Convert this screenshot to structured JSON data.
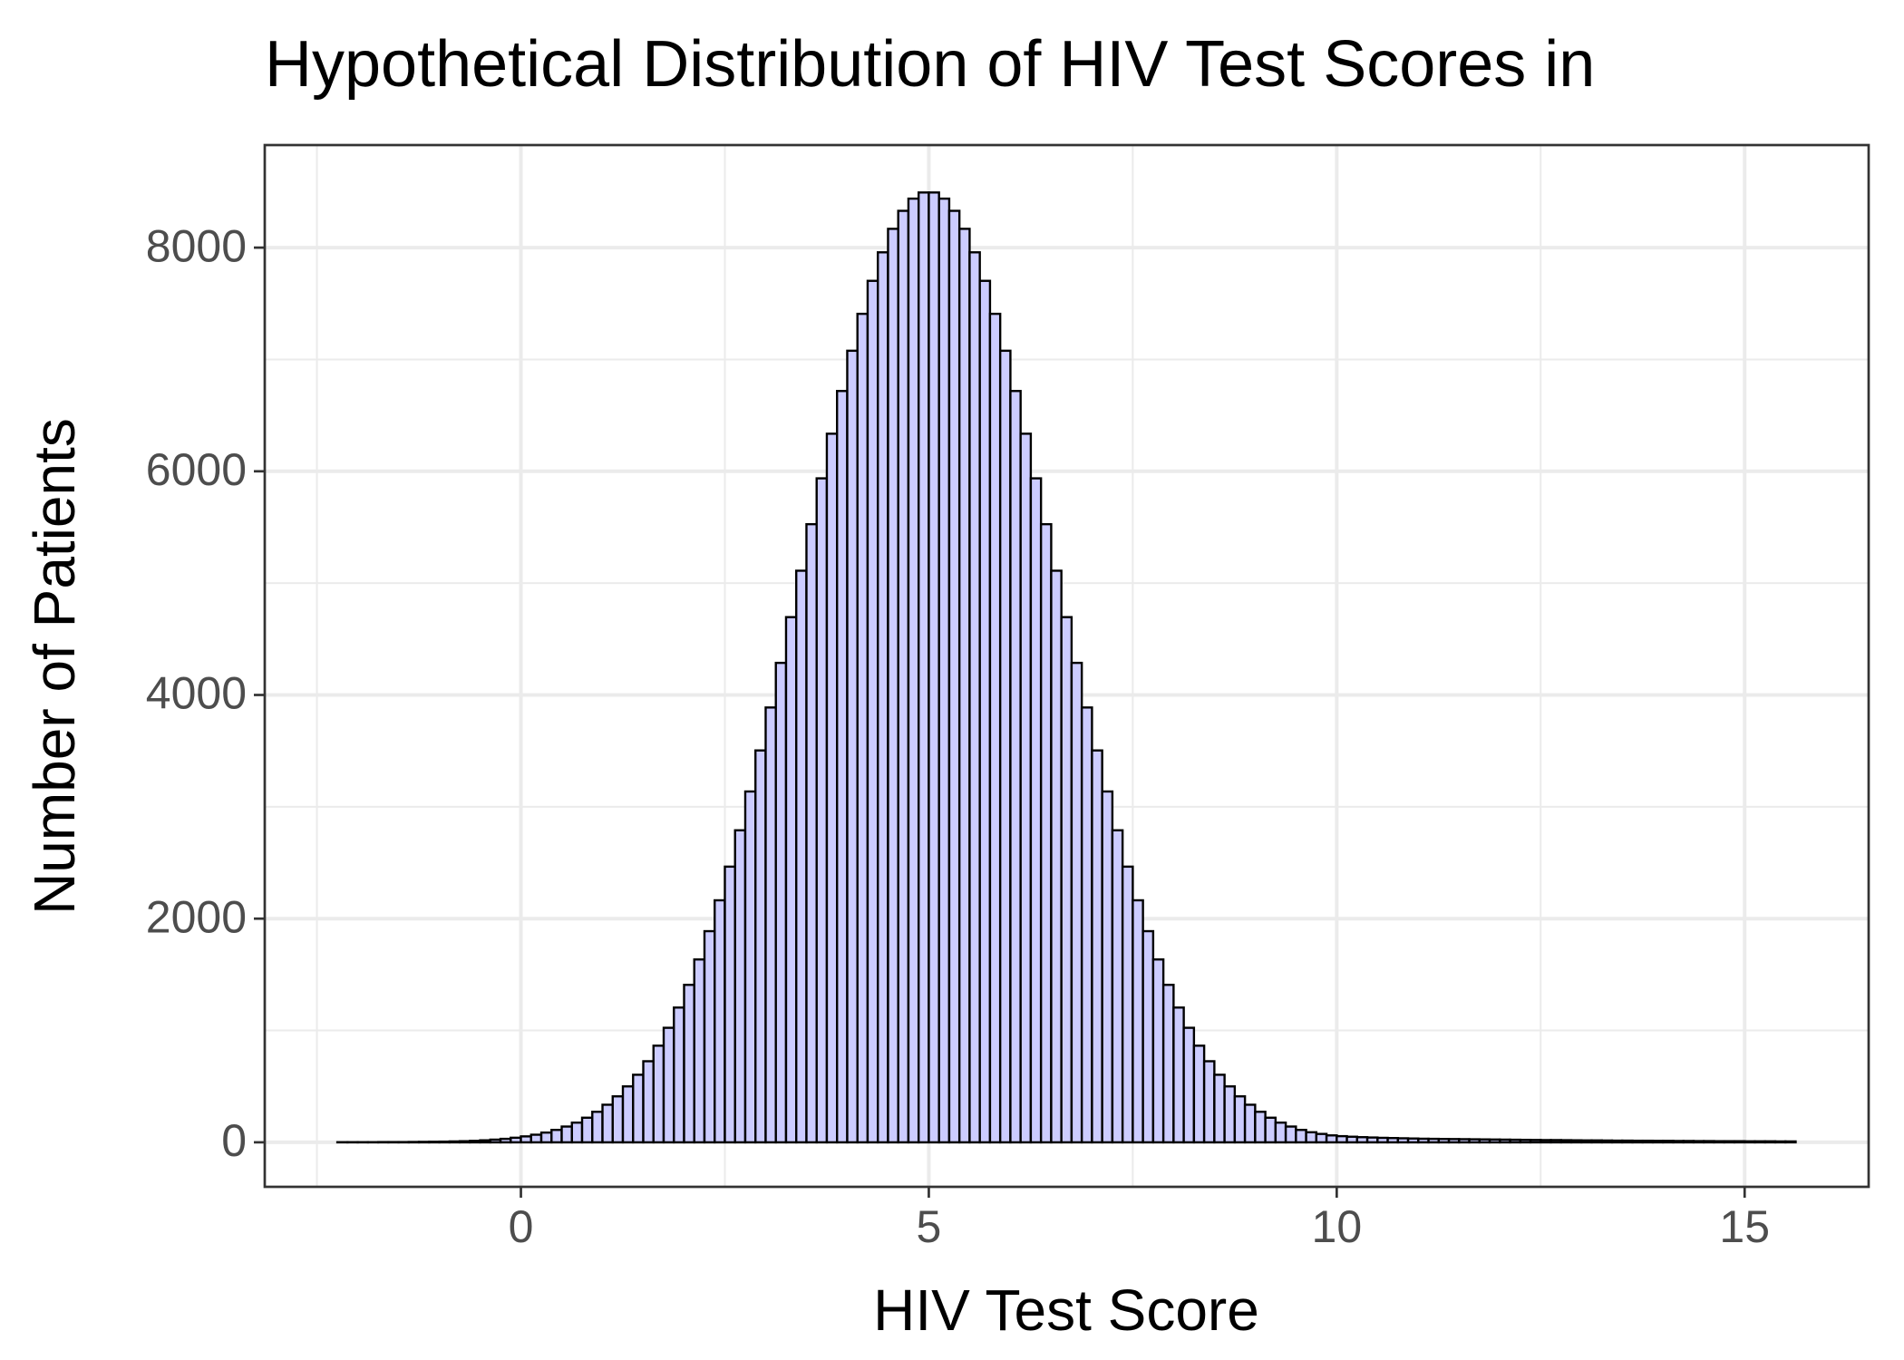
{
  "chart_data": {
    "type": "histogram",
    "title": "Hypothetical Distribution of HIV Test Scores in",
    "x_label": "HIV Test Score",
    "y_label": "Number of Patients",
    "fill": "#ccccff",
    "edgecolor": "#000000",
    "grid": true,
    "xlim": [
      -3.14,
      16.52
    ],
    "ylim": [
      -398,
      8917
    ],
    "xticks": [
      0,
      5,
      10,
      15
    ],
    "yticks": [
      0,
      2000,
      4000,
      6000,
      8000
    ],
    "bins": [
      -2.25,
      -2.125,
      -2,
      -1.875,
      -1.75,
      -1.625,
      -1.5,
      -1.375,
      -1.25,
      -1.125,
      -1,
      -0.875,
      -0.75,
      -0.625,
      -0.5,
      -0.375,
      -0.25,
      -0.125,
      0,
      0.125,
      0.25,
      0.375,
      0.5,
      0.625,
      0.75,
      0.875,
      1,
      1.125,
      1.25,
      1.375,
      1.5,
      1.625,
      1.75,
      1.875,
      2,
      2.125,
      2.25,
      2.375,
      2.5,
      2.625,
      2.75,
      2.875,
      3,
      3.125,
      3.25,
      3.375,
      3.5,
      3.625,
      3.75,
      3.875,
      4,
      4.125,
      4.25,
      4.375,
      4.5,
      4.625,
      4.75,
      4.875,
      5,
      5.125,
      5.25,
      5.375,
      5.5,
      5.625,
      5.75,
      5.875,
      6,
      6.125,
      6.25,
      6.375,
      6.5,
      6.625,
      6.75,
      6.875,
      7,
      7.125,
      7.25,
      7.375,
      7.5,
      7.625,
      7.75,
      7.875,
      8,
      8.125,
      8.25,
      8.375,
      8.5,
      8.625,
      8.75,
      8.875,
      9,
      9.125,
      9.25,
      9.375,
      9.5,
      9.625,
      9.75,
      9.875,
      10,
      10.125,
      10.25,
      10.375,
      10.5,
      10.625,
      10.75,
      10.875,
      11,
      11.125,
      11.25,
      11.375,
      11.5,
      11.625,
      11.75,
      11.875,
      12,
      12.125,
      12.25,
      12.375,
      12.5,
      12.625,
      12.75,
      12.875,
      13,
      13.125,
      13.25,
      13.375,
      13.5,
      13.625,
      13.75,
      13.875,
      14,
      14.125,
      14.25,
      14.375,
      14.5,
      14.625,
      14.75,
      14.875,
      15,
      15.125,
      15.25,
      15.375,
      15.5,
      15.625
    ],
    "values": [
      1,
      1,
      1,
      1,
      2,
      2,
      2,
      3,
      4,
      5,
      6,
      8,
      10,
      13,
      18,
      24,
      31,
      41,
      53,
      68,
      87,
      111,
      141,
      176,
      220,
      273,
      336,
      411,
      500,
      604,
      725,
      864,
      1024,
      1205,
      1408,
      1635,
      1888,
      2164,
      2465,
      2790,
      3137,
      3504,
      3888,
      4287,
      4696,
      5111,
      5527,
      5937,
      6336,
      6718,
      7078,
      7408,
      7703,
      7958,
      8168,
      8329,
      8438,
      8493,
      8493,
      8438,
      8329,
      8168,
      7958,
      7703,
      7408,
      7078,
      6718,
      6336,
      5937,
      5527,
      5111,
      4696,
      4287,
      3888,
      3504,
      3137,
      2790,
      2465,
      2164,
      1888,
      1635,
      1408,
      1205,
      1024,
      864,
      725,
      604,
      500,
      411,
      336,
      273,
      220,
      176,
      141,
      111,
      90,
      75,
      62,
      55,
      50,
      46,
      43,
      40,
      38,
      36,
      34,
      32,
      31,
      30,
      29,
      28,
      27,
      26,
      25,
      24,
      23,
      22,
      21,
      20,
      20,
      19,
      18,
      17,
      17,
      16,
      15,
      15,
      14,
      14,
      13,
      13,
      12,
      12,
      11,
      11,
      10,
      10,
      10,
      9,
      9,
      9,
      8,
      8
    ]
  }
}
